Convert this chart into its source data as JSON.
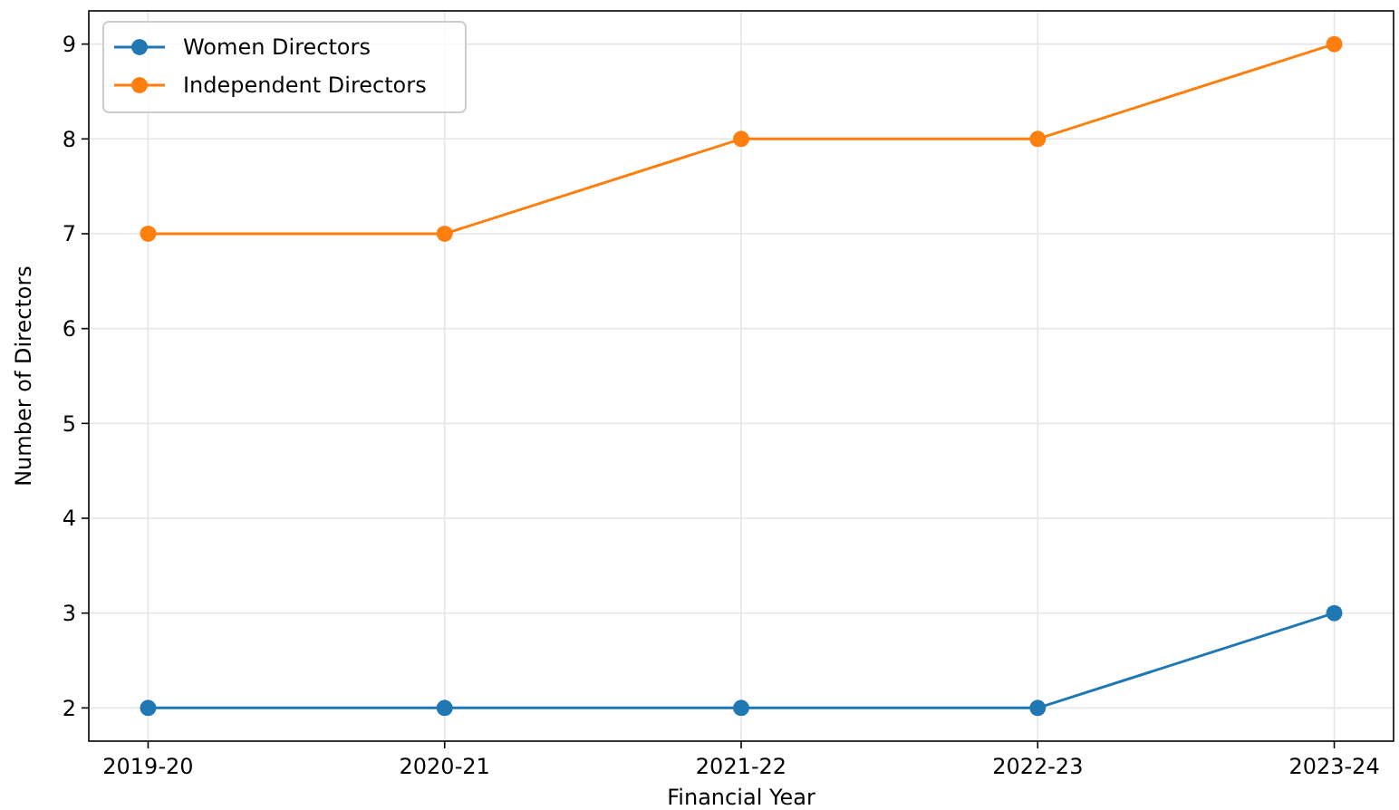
{
  "chart_data": {
    "type": "line",
    "xlabel": "Financial Year",
    "ylabel": "Number of Directors",
    "categories": [
      "2019-20",
      "2020-21",
      "2021-22",
      "2022-23",
      "2023-24"
    ],
    "series": [
      {
        "name": "Women Directors",
        "color": "#1f77b4",
        "values": [
          2,
          2,
          2,
          2,
          3
        ]
      },
      {
        "name": "Independent Directors",
        "color": "#ff7f0e",
        "values": [
          7,
          7,
          8,
          8,
          9
        ]
      }
    ],
    "ylim": [
      1.65,
      9.35
    ],
    "yticks": [
      2,
      3,
      4,
      5,
      6,
      7,
      8,
      9
    ],
    "grid": true,
    "legend": "top left",
    "marker": "circle",
    "line_style": "solid"
  }
}
